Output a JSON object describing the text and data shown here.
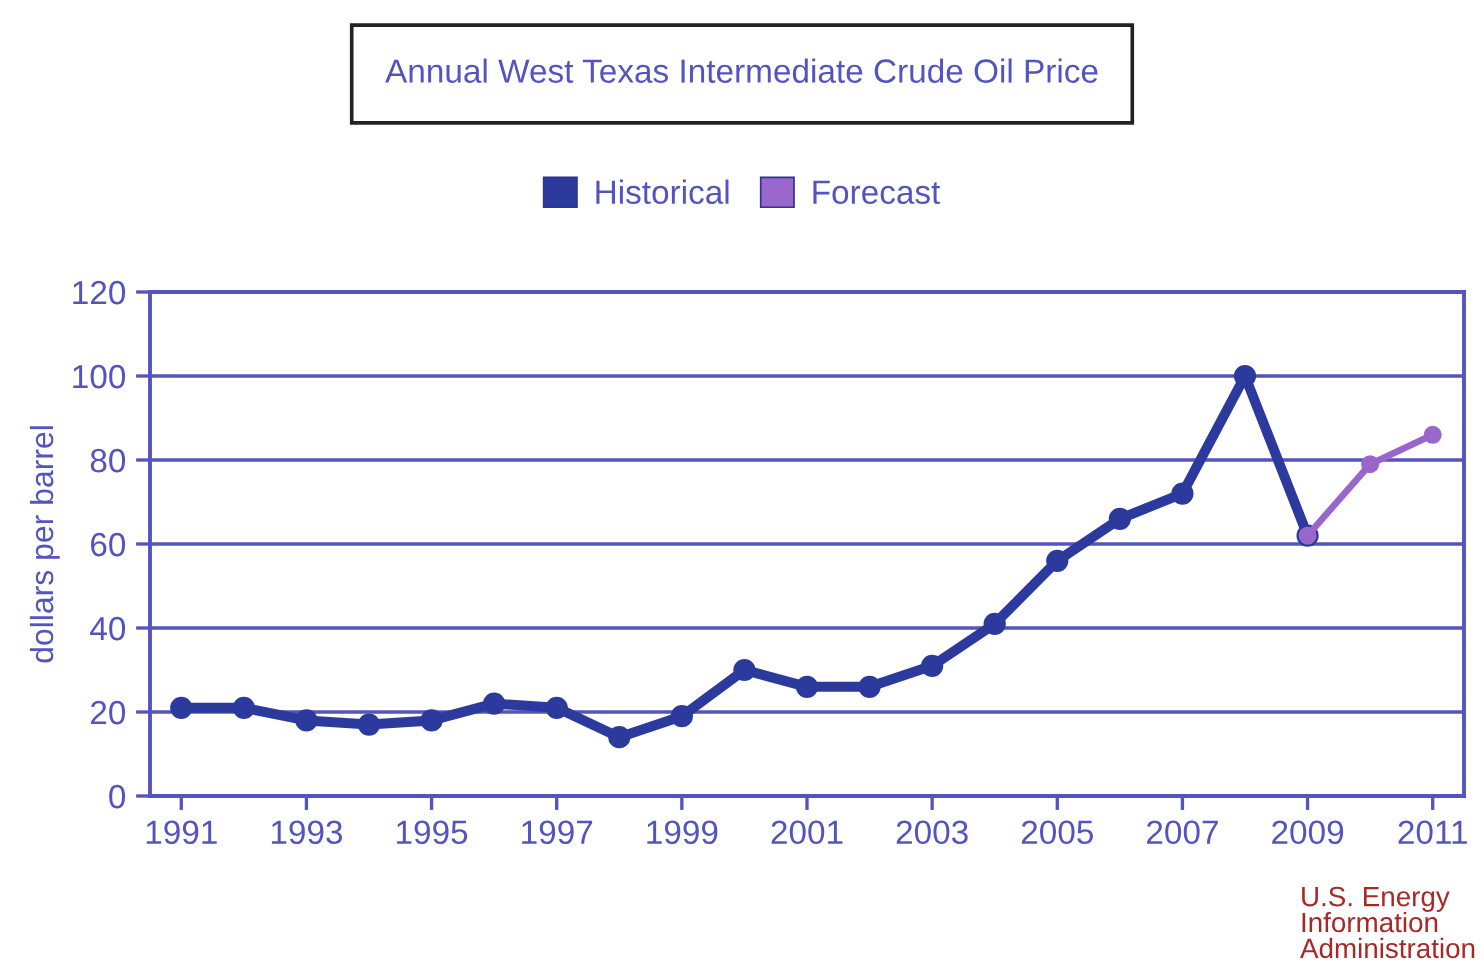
{
  "chart_data": {
    "type": "line",
    "title": "Annual West Texas Intermediate Crude Oil Price",
    "ylabel": "dollars per barrel",
    "series": [
      {
        "name": "Historical",
        "color": "#2b3a9c",
        "x": [
          1991,
          1992,
          1993,
          1994,
          1995,
          1996,
          1997,
          1998,
          1999,
          2000,
          2001,
          2002,
          2003,
          2004,
          2005,
          2006,
          2007,
          2008,
          2009
        ],
        "values": [
          21,
          21,
          18,
          17,
          18,
          22,
          21,
          14,
          19,
          30,
          26,
          26,
          31,
          41,
          56,
          66,
          72,
          100,
          62
        ]
      },
      {
        "name": "Forecast",
        "color": "#9966cc",
        "x": [
          2009,
          2010,
          2011
        ],
        "values": [
          62,
          79,
          86
        ]
      }
    ],
    "xlim": [
      1990.5,
      2011.5
    ],
    "xticks": [
      1991,
      1993,
      1995,
      1997,
      1999,
      2001,
      2003,
      2005,
      2007,
      2009,
      2011
    ],
    "ylim": [
      0,
      120
    ],
    "yticks": [
      0,
      20,
      40,
      60,
      80,
      100,
      120
    ],
    "grid": "y",
    "legend": "top",
    "marker": "circle",
    "line_style": "solid",
    "annotations": [
      "U.S. Energy\nInformation\nAdministration"
    ]
  }
}
